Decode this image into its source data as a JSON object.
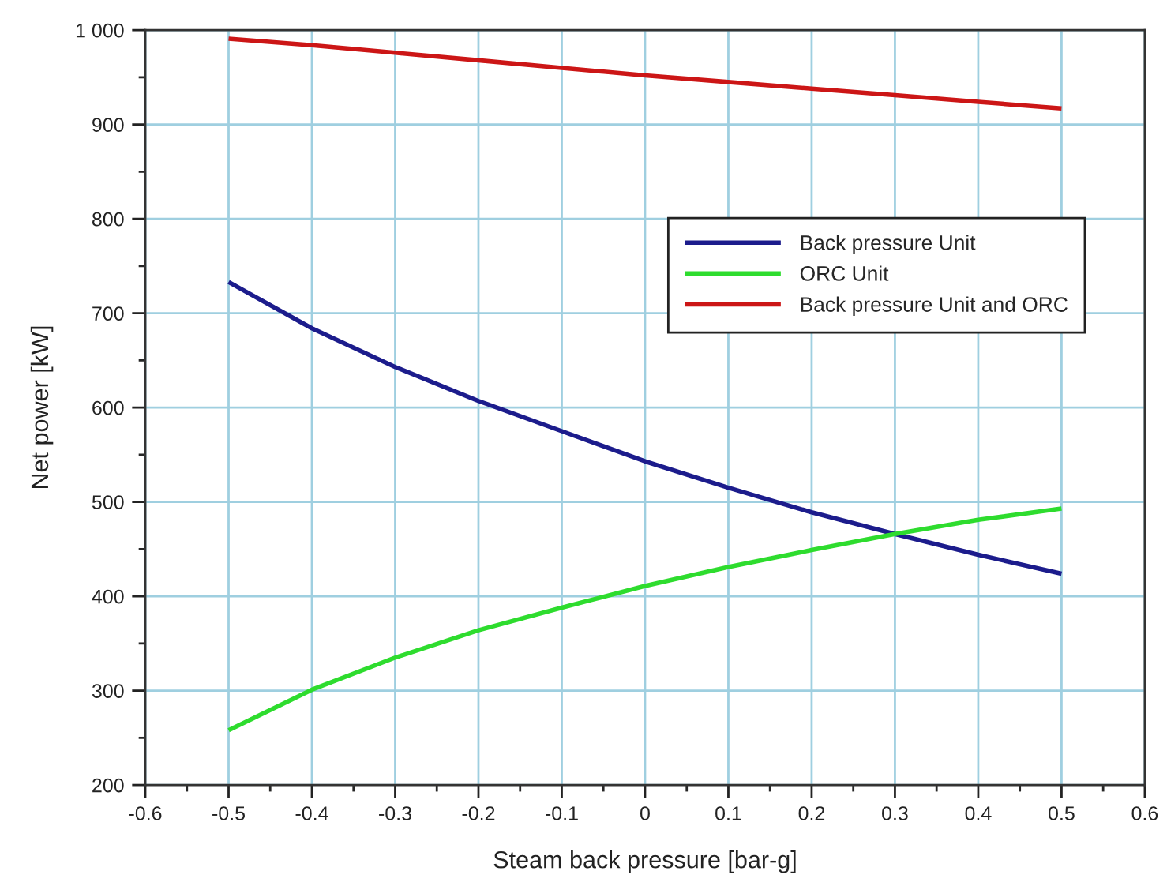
{
  "chart_data": {
    "type": "line",
    "xlabel": "Steam back pressure [bar-g]",
    "ylabel": "Net power [kW]",
    "x": [
      -0.5,
      -0.4,
      -0.3,
      -0.2,
      -0.1,
      0,
      0.1,
      0.2,
      0.3,
      0.4,
      0.5
    ],
    "series": [
      {
        "name": "Back pressure Unit",
        "color": "#1c1c8c",
        "values": [
          733,
          684,
          643,
          607,
          575,
          543,
          515,
          489,
          466,
          444,
          424
        ]
      },
      {
        "name": "ORC Unit",
        "color": "#2edc2e",
        "values": [
          258,
          301,
          335,
          364,
          388,
          411,
          431,
          449,
          466,
          481,
          493
        ]
      },
      {
        "name": "Back pressure Unit and ORC",
        "color": "#cc1616",
        "values": [
          991,
          984,
          976,
          968,
          960,
          952,
          945,
          938,
          931,
          924,
          917
        ]
      }
    ],
    "xlim": [
      -0.6,
      0.6
    ],
    "xticks": [
      -0.6,
      {
        "value": -0.55,
        "label": null
      },
      -0.5,
      {
        "value": -0.45,
        "label": null
      },
      -0.4,
      {
        "value": -0.35,
        "label": null
      },
      -0.3,
      {
        "value": -0.25,
        "label": null
      },
      -0.2,
      {
        "value": -0.15,
        "label": null
      },
      -0.1,
      {
        "value": -0.05,
        "label": null
      },
      0,
      {
        "value": 0.05,
        "label": null
      },
      0.1,
      {
        "value": 0.15,
        "label": null
      },
      0.2,
      {
        "value": 0.25,
        "label": null
      },
      0.3,
      {
        "value": 0.35,
        "label": null
      },
      0.4,
      {
        "value": 0.45,
        "label": null
      },
      0.5,
      {
        "value": 0.55,
        "label": null
      },
      0.6
    ],
    "ylim": [
      200,
      1000
    ],
    "yticks": [
      200,
      {
        "value": 250,
        "label": null
      },
      300,
      {
        "value": 350,
        "label": null
      },
      400,
      {
        "value": 450,
        "label": null
      },
      500,
      {
        "value": 550,
        "label": null
      },
      600,
      {
        "value": 650,
        "label": null
      },
      700,
      {
        "value": 750,
        "label": null
      },
      800,
      {
        "value": 850,
        "label": null
      },
      900,
      {
        "value": 950,
        "label": null
      },
      {
        "value": 1000,
        "label": "1 000"
      }
    ],
    "grid": true,
    "legend": "top right"
  }
}
